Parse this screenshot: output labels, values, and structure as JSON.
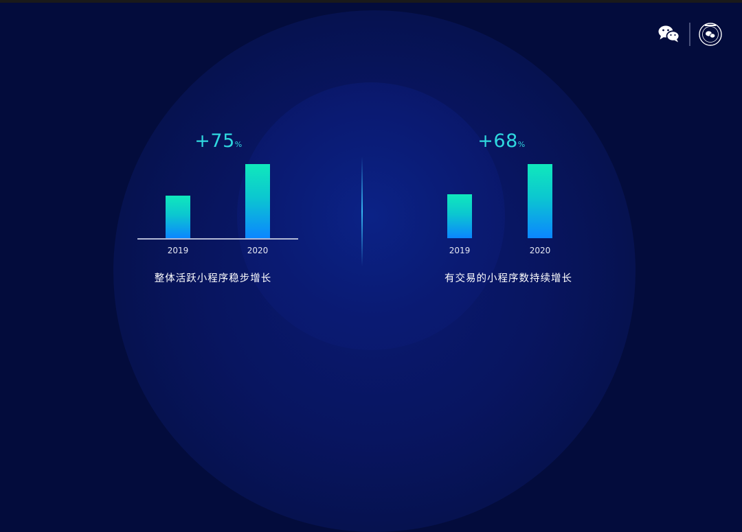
{
  "chart_data": [
    {
      "type": "bar",
      "categories": [
        "2019",
        "2020"
      ],
      "values": [
        57,
        100
      ],
      "ylim": [
        0,
        100
      ],
      "annotation": "+75",
      "annotation_unit": "%",
      "caption": "整体活跃小程序稳步增长",
      "axis_line": true,
      "colors": {
        "bar_top": "#10e8bc",
        "bar_bottom": "#0b86ff",
        "annotation": "#2fd8df"
      }
    },
    {
      "type": "bar",
      "categories": [
        "2019",
        "2020"
      ],
      "values": [
        59,
        100
      ],
      "ylim": [
        0,
        100
      ],
      "annotation": "+68",
      "annotation_unit": "%",
      "caption": "有交易的小程序数持续增长",
      "axis_line": false,
      "colors": {
        "bar_top": "#10e8bc",
        "bar_bottom": "#0b86ff",
        "annotation": "#2fd8df"
      }
    }
  ],
  "logos": {
    "wechat_icon": "wechat-icon",
    "seal_icon": "seal-logo-icon"
  }
}
